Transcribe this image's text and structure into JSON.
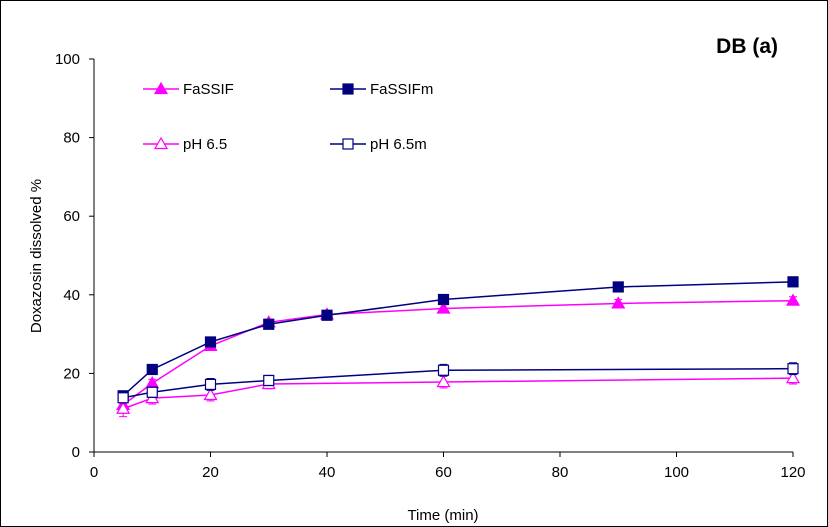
{
  "chart_data": {
    "type": "line",
    "title": "DB (a)",
    "xlabel": "Time (min)",
    "ylabel": "Doxazosin dissolved %",
    "xlim": [
      0,
      120
    ],
    "ylim": [
      0,
      100
    ],
    "x_ticks": [
      "0",
      "20",
      "40",
      "60",
      "80",
      "100",
      "120"
    ],
    "y_ticks": [
      "0",
      "20",
      "40",
      "60",
      "80",
      "100"
    ],
    "grid": false,
    "legend_placement": "top-left, two columns",
    "series": [
      {
        "name": "FaSSIF",
        "color": "#ff00ff",
        "marker": "triangle-filled",
        "x": [
          5,
          10,
          20,
          30,
          40,
          60,
          90,
          120
        ],
        "y": [
          12,
          17.5,
          27,
          33,
          35,
          36.5,
          37.8,
          38.5
        ],
        "error": [
          1,
          1,
          1,
          0.8,
          0.8,
          1,
          1,
          1
        ]
      },
      {
        "name": "FaSSIFm",
        "color": "#000080",
        "marker": "square-filled",
        "x": [
          5,
          10,
          20,
          30,
          40,
          60,
          90,
          120
        ],
        "y": [
          14.3,
          21,
          28,
          32.5,
          34.8,
          38.8,
          42,
          43.3
        ],
        "error": [
          0.8,
          0.8,
          0.8,
          0.8,
          0.6,
          1,
          0.8,
          0.8
        ]
      },
      {
        "name": "pH 6.5",
        "color": "#ff00ff",
        "marker": "triangle-open",
        "x": [
          5,
          10,
          20,
          30,
          60,
          120
        ],
        "y": [
          11,
          13.7,
          14.5,
          17.3,
          17.8,
          18.8
        ],
        "error": [
          2,
          1.5,
          1.5,
          1.2,
          1.5,
          1.5
        ]
      },
      {
        "name": "pH 6.5m",
        "color": "#000080",
        "marker": "square-open",
        "x": [
          5,
          10,
          20,
          30,
          60,
          120
        ],
        "y": [
          13.8,
          15.2,
          17.2,
          18.2,
          20.8,
          21.2
        ],
        "error": [
          1.3,
          1.3,
          1.5,
          1.3,
          1.5,
          1.5
        ]
      }
    ]
  }
}
